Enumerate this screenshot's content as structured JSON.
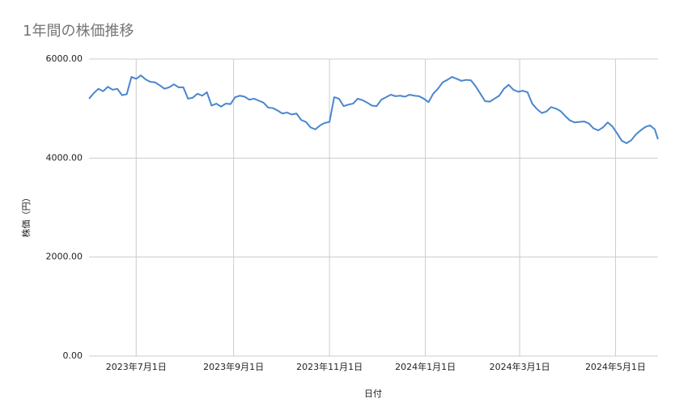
{
  "chart_data": {
    "type": "line",
    "title": "1年間の株価推移",
    "x_label": "日付",
    "y_label": "株価（円）",
    "x": [
      "2023-06-01",
      "2023-06-04",
      "2023-06-07",
      "2023-06-10",
      "2023-06-13",
      "2023-06-16",
      "2023-06-19",
      "2023-06-22",
      "2023-06-25",
      "2023-06-28",
      "2023-07-01",
      "2023-07-04",
      "2023-07-07",
      "2023-07-10",
      "2023-07-13",
      "2023-07-16",
      "2023-07-19",
      "2023-07-22",
      "2023-07-25",
      "2023-07-28",
      "2023-07-31",
      "2023-08-03",
      "2023-08-06",
      "2023-08-09",
      "2023-08-12",
      "2023-08-15",
      "2023-08-18",
      "2023-08-21",
      "2023-08-24",
      "2023-08-27",
      "2023-08-30",
      "2023-09-02",
      "2023-09-05",
      "2023-09-08",
      "2023-09-11",
      "2023-09-14",
      "2023-09-17",
      "2023-09-20",
      "2023-09-23",
      "2023-09-26",
      "2023-09-29",
      "2023-10-02",
      "2023-10-05",
      "2023-10-08",
      "2023-10-11",
      "2023-10-14",
      "2023-10-17",
      "2023-10-20",
      "2023-10-23",
      "2023-10-26",
      "2023-10-29",
      "2023-11-01",
      "2023-11-04",
      "2023-11-07",
      "2023-11-10",
      "2023-11-13",
      "2023-11-16",
      "2023-11-19",
      "2023-11-22",
      "2023-11-25",
      "2023-11-28",
      "2023-12-01",
      "2023-12-04",
      "2023-12-07",
      "2023-12-10",
      "2023-12-13",
      "2023-12-16",
      "2023-12-19",
      "2023-12-22",
      "2023-12-25",
      "2023-12-28",
      "2023-12-31",
      "2024-01-03",
      "2024-01-06",
      "2024-01-09",
      "2024-01-12",
      "2024-01-15",
      "2024-01-18",
      "2024-01-21",
      "2024-01-24",
      "2024-01-27",
      "2024-01-30",
      "2024-02-02",
      "2024-02-05",
      "2024-02-08",
      "2024-02-11",
      "2024-02-14",
      "2024-02-17",
      "2024-02-20",
      "2024-02-23",
      "2024-02-26",
      "2024-02-29",
      "2024-03-03",
      "2024-03-06",
      "2024-03-09",
      "2024-03-12",
      "2024-03-15",
      "2024-03-18",
      "2024-03-21",
      "2024-03-24",
      "2024-03-27",
      "2024-03-30",
      "2024-04-02",
      "2024-04-05",
      "2024-04-08",
      "2024-04-11",
      "2024-04-14",
      "2024-04-17",
      "2024-04-20",
      "2024-04-23",
      "2024-04-26",
      "2024-04-29",
      "2024-05-02",
      "2024-05-05",
      "2024-05-08",
      "2024-05-11",
      "2024-05-14",
      "2024-05-17",
      "2024-05-20",
      "2024-05-23",
      "2024-05-26",
      "2024-05-28"
    ],
    "series": [
      {
        "name": "株価",
        "color": "#4a86cf",
        "values": [
          5200,
          5310,
          5400,
          5350,
          5440,
          5380,
          5400,
          5270,
          5290,
          5640,
          5600,
          5670,
          5590,
          5540,
          5530,
          5470,
          5400,
          5430,
          5490,
          5430,
          5430,
          5200,
          5220,
          5300,
          5260,
          5330,
          5060,
          5100,
          5040,
          5100,
          5090,
          5230,
          5260,
          5240,
          5180,
          5200,
          5160,
          5120,
          5020,
          5010,
          4960,
          4900,
          4920,
          4880,
          4900,
          4770,
          4730,
          4620,
          4580,
          4660,
          4710,
          4730,
          5230,
          5200,
          5050,
          5080,
          5100,
          5200,
          5170,
          5120,
          5060,
          5050,
          5180,
          5230,
          5280,
          5250,
          5260,
          5240,
          5280,
          5260,
          5250,
          5200,
          5130,
          5300,
          5400,
          5530,
          5580,
          5640,
          5600,
          5560,
          5580,
          5570,
          5450,
          5300,
          5150,
          5140,
          5200,
          5260,
          5400,
          5480,
          5380,
          5340,
          5360,
          5330,
          5100,
          4990,
          4910,
          4940,
          5030,
          5000,
          4950,
          4850,
          4760,
          4720,
          4730,
          4740,
          4700,
          4600,
          4560,
          4620,
          4720,
          4640,
          4500,
          4350,
          4300,
          4360,
          4480,
          4560,
          4630,
          4660,
          4580,
          4380
        ]
      }
    ],
    "xlim": [
      "2023-06-01",
      "2024-05-28"
    ],
    "xticks": [
      {
        "value": "2023-07-01",
        "label": "2023年7月1日"
      },
      {
        "value": "2023-09-01",
        "label": "2023年9月1日"
      },
      {
        "value": "2023-11-01",
        "label": "2023年11月1日"
      },
      {
        "value": "2024-01-01",
        "label": "2024年1月1日"
      },
      {
        "value": "2024-03-01",
        "label": "2024年3月1日"
      },
      {
        "value": "2024-05-01",
        "label": "2024年5月1日"
      }
    ],
    "ylim": [
      0,
      6000
    ],
    "yticks": [
      {
        "value": 0,
        "label": "0.00"
      },
      {
        "value": 2000,
        "label": "2000.00"
      },
      {
        "value": 4000,
        "label": "4000.00"
      },
      {
        "value": 6000,
        "label": "6000.00"
      }
    ],
    "grid": true
  }
}
